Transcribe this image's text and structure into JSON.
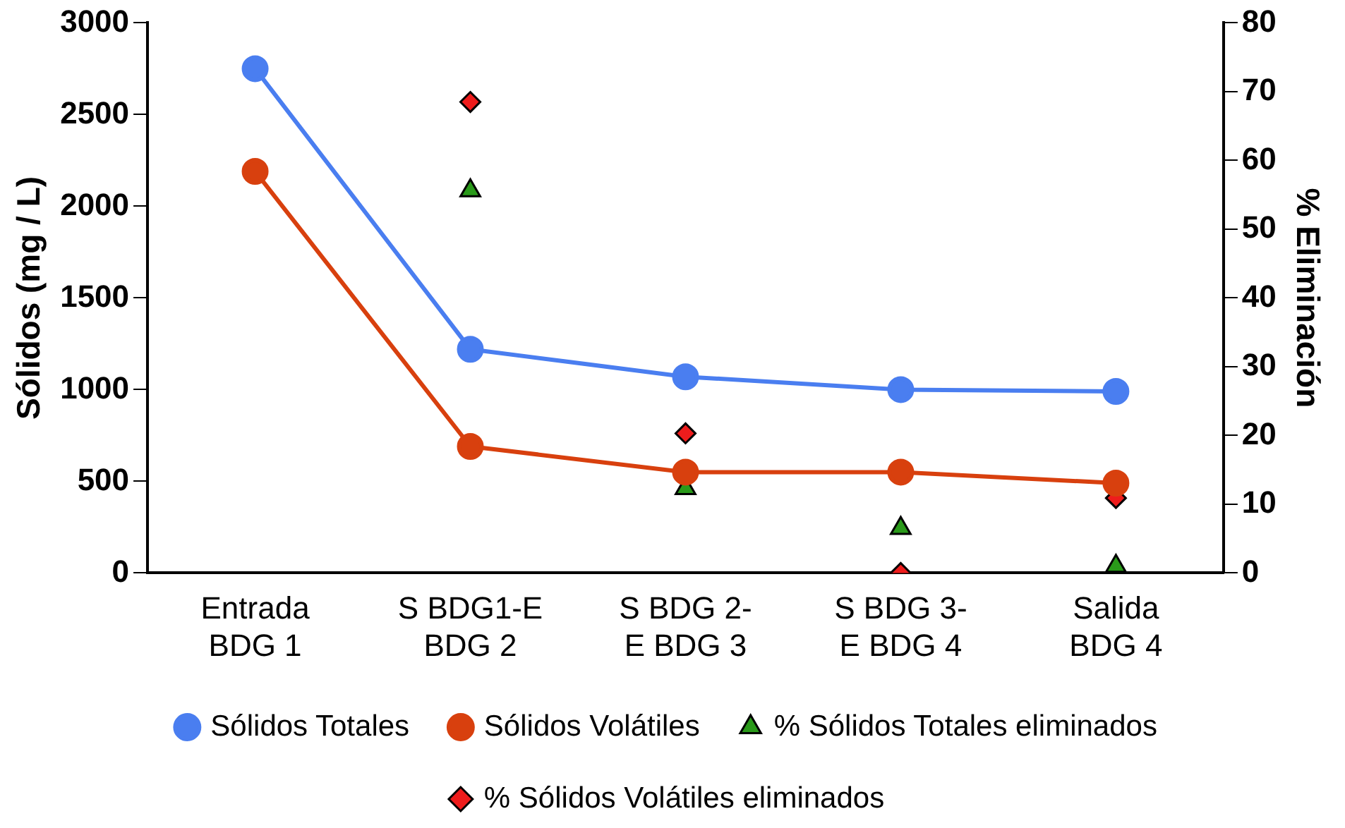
{
  "chart_data": {
    "type": "line",
    "categories": [
      "Entrada\nBDG 1",
      "S BDG1-E\nBDG 2",
      "S BDG 2-\nE BDG 3",
      "S BDG 3-\nE BDG 4",
      "Salida\nBDG 4"
    ],
    "ylabel": "Sólidos (mg / L)",
    "y2label": "% Eliminación",
    "ylim": [
      0,
      3000
    ],
    "yticks": [
      0,
      500,
      1000,
      1500,
      2000,
      2500,
      3000
    ],
    "y2lim": [
      0,
      80
    ],
    "y2ticks": [
      0,
      10,
      20,
      30,
      40,
      50,
      60,
      70,
      80
    ],
    "grid": false,
    "legend": "bottom",
    "marker": "circle",
    "line_style": "solid",
    "series": [
      {
        "name": "Sólidos Totales",
        "color": "#4a7ef0",
        "values": [
          2750,
          1220,
          1070,
          1000,
          990
        ]
      },
      {
        "name": "Sólidos Volátiles",
        "color": "#d8400e",
        "values": [
          2190,
          690,
          550,
          550,
          490
        ]
      },
      {
        "name": "% Sólidos Totales eliminados",
        "type": "scatter",
        "axis": "y2",
        "marker": "triangle",
        "color": "#2a9a1a",
        "values": [
          null,
          55.6,
          12.3,
          6.5,
          1.0
        ]
      },
      {
        "name": "% Sólidos Volátiles eliminados",
        "type": "scatter",
        "axis": "y2",
        "marker": "diamond",
        "color": "#ee1c1c",
        "values": [
          null,
          68.5,
          20.3,
          0,
          10.9
        ]
      }
    ]
  }
}
